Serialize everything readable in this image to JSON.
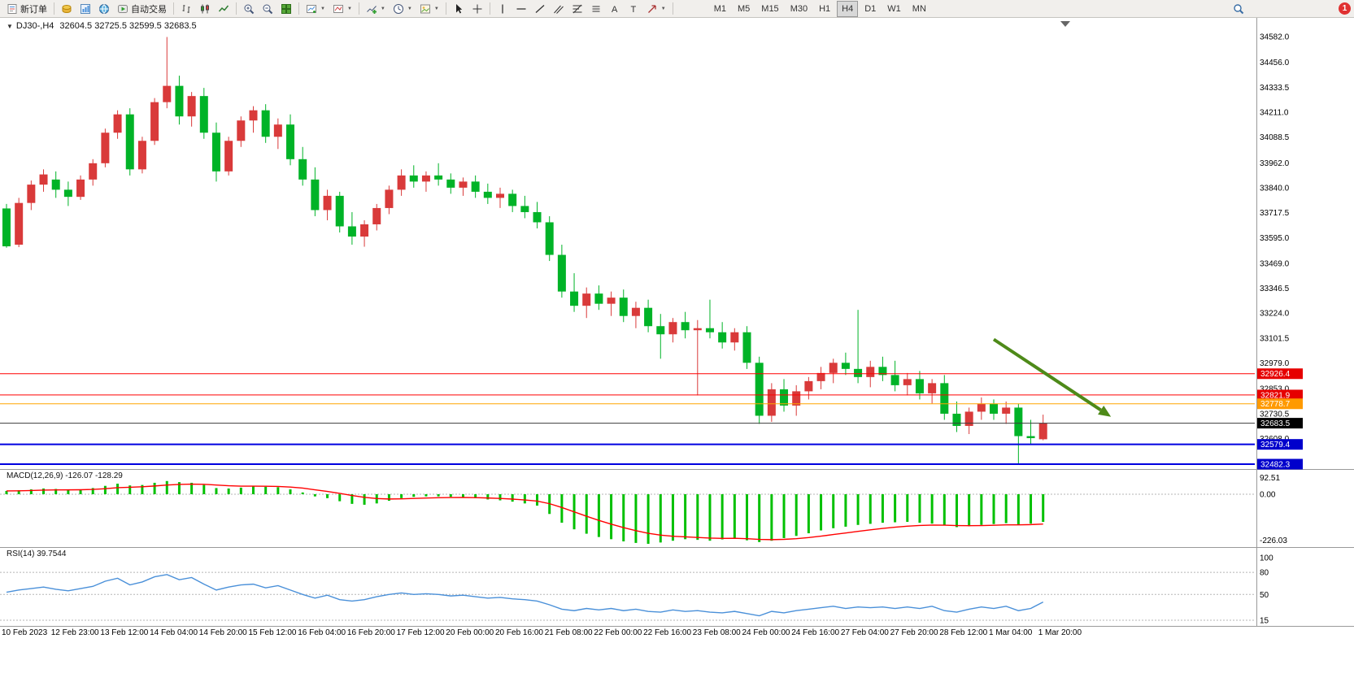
{
  "toolbar": {
    "new_order_label": "新订单",
    "autotrade_label": "自动交易",
    "timeframes": [
      "M1",
      "M5",
      "M15",
      "M30",
      "H1",
      "H4",
      "D1",
      "W1",
      "MN"
    ],
    "active_timeframe": "H4",
    "notification_count": "1",
    "icon_names": [
      "new-order-icon",
      "market-watch-icon",
      "data-window-icon",
      "community-icon",
      "autotrade-icon",
      "bar-chart-mode-icon",
      "candle-chart-mode-icon",
      "line-chart-mode-icon",
      "zoom-in-icon",
      "zoom-out-icon",
      "tile-windows-icon",
      "new-chart-icon",
      "chart-profiles-icon",
      "indicators-icon",
      "periods-icon",
      "templates-icon",
      "cursor-icon",
      "crosshair-icon",
      "vertical-line-icon",
      "horizontal-line-icon",
      "trendline-icon",
      "channel-icon",
      "fibonacci-icon",
      "shapes-icon",
      "text-icon",
      "label-icon",
      "arrows-icon",
      "search-icon"
    ]
  },
  "chart": {
    "expander": "▼",
    "symbol_header": "DJ30-,H4",
    "ohlc_text": "32604.5 32725.5 32599.5 32683.5",
    "colors": {
      "candle_up": "#d93a3a",
      "candle_down": "#00b327",
      "macd_histogram": "#00c000",
      "macd_signal": "#ff0000",
      "rsi_line": "#4a90d9",
      "separator": "#9a9a9a",
      "axis_text": "#000000",
      "grid_dash": "#b5b5b5"
    }
  },
  "chart_data": {
    "type": "candlestick",
    "symbol": "DJ30-",
    "timeframe": "H4",
    "open": "32604.5",
    "high": "32725.5",
    "low": "32599.5",
    "close": "32683.5",
    "price_axis": {
      "top": 34582.0,
      "bottom": 32482.3,
      "ticks": [
        "34582.0",
        "34456.0",
        "34333.5",
        "34211.0",
        "34088.5",
        "33962.0",
        "33840.0",
        "33717.5",
        "33595.0",
        "33469.0",
        "33346.5",
        "33224.0",
        "33101.5",
        "32979.0",
        "32853.0",
        "32730.5",
        "32608.0"
      ]
    },
    "x_labels": [
      "10 Feb 2023",
      "12 Feb 23:00",
      "13 Feb 12:00",
      "14 Feb 04:00",
      "14 Feb 20:00",
      "15 Feb 12:00",
      "16 Feb 04:00",
      "16 Feb 20:00",
      "17 Feb 12:00",
      "20 Feb 00:00",
      "20 Feb 16:00",
      "21 Feb 08:00",
      "22 Feb 00:00",
      "22 Feb 16:00",
      "23 Feb 08:00",
      "24 Feb 00:00",
      "24 Feb 16:00",
      "27 Feb 04:00",
      "27 Feb 20:00",
      "28 Feb 12:00",
      "1 Mar 04:00",
      "1 Mar 20:00"
    ],
    "candles": [
      [
        33738,
        33760,
        33545,
        33552
      ],
      [
        33560,
        33790,
        33548,
        33765
      ],
      [
        33765,
        33875,
        33730,
        33855
      ],
      [
        33855,
        33930,
        33820,
        33905
      ],
      [
        33880,
        33920,
        33790,
        33830
      ],
      [
        33830,
        33870,
        33750,
        33795
      ],
      [
        33795,
        33900,
        33780,
        33880
      ],
      [
        33880,
        33980,
        33850,
        33960
      ],
      [
        33960,
        34130,
        33940,
        34110
      ],
      [
        34110,
        34220,
        34080,
        34200
      ],
      [
        34200,
        34230,
        33900,
        33930
      ],
      [
        33930,
        34090,
        33910,
        34070
      ],
      [
        34070,
        34280,
        34050,
        34260
      ],
      [
        34260,
        34580,
        34230,
        34340
      ],
      [
        34340,
        34390,
        34150,
        34190
      ],
      [
        34190,
        34310,
        34140,
        34290
      ],
      [
        34290,
        34330,
        34080,
        34110
      ],
      [
        34110,
        34160,
        33870,
        33920
      ],
      [
        33920,
        34090,
        33900,
        34070
      ],
      [
        34070,
        34190,
        34040,
        34170
      ],
      [
        34170,
        34240,
        34110,
        34220
      ],
      [
        34220,
        34250,
        34060,
        34090
      ],
      [
        34090,
        34180,
        34030,
        34150
      ],
      [
        34150,
        34200,
        33950,
        33980
      ],
      [
        33980,
        34040,
        33850,
        33880
      ],
      [
        33880,
        33940,
        33700,
        33730
      ],
      [
        33730,
        33830,
        33680,
        33800
      ],
      [
        33800,
        33820,
        33620,
        33650
      ],
      [
        33650,
        33720,
        33560,
        33600
      ],
      [
        33600,
        33680,
        33550,
        33660
      ],
      [
        33660,
        33760,
        33630,
        33740
      ],
      [
        33740,
        33850,
        33710,
        33830
      ],
      [
        33830,
        33930,
        33800,
        33900
      ],
      [
        33900,
        33950,
        33840,
        33870
      ],
      [
        33870,
        33920,
        33820,
        33900
      ],
      [
        33900,
        33960,
        33850,
        33880
      ],
      [
        33880,
        33910,
        33810,
        33840
      ],
      [
        33840,
        33890,
        33800,
        33870
      ],
      [
        33870,
        33900,
        33790,
        33820
      ],
      [
        33820,
        33860,
        33760,
        33790
      ],
      [
        33790,
        33840,
        33740,
        33810
      ],
      [
        33810,
        33830,
        33720,
        33750
      ],
      [
        33750,
        33800,
        33690,
        33720
      ],
      [
        33720,
        33770,
        33640,
        33670
      ],
      [
        33670,
        33700,
        33480,
        33510
      ],
      [
        33510,
        33560,
        33300,
        33330
      ],
      [
        33330,
        33420,
        33230,
        33260
      ],
      [
        33260,
        33350,
        33200,
        33320
      ],
      [
        33320,
        33360,
        33240,
        33270
      ],
      [
        33270,
        33330,
        33210,
        33300
      ],
      [
        33300,
        33340,
        33180,
        33210
      ],
      [
        33210,
        33280,
        33150,
        33250
      ],
      [
        33250,
        33290,
        33130,
        33160
      ],
      [
        33160,
        33220,
        33000,
        33120
      ],
      [
        33120,
        33200,
        33080,
        33180
      ],
      [
        33180,
        33230,
        33100,
        33140
      ],
      [
        33140,
        33190,
        32820,
        33150
      ],
      [
        33150,
        33290,
        33100,
        33130
      ],
      [
        33130,
        33180,
        33050,
        33080
      ],
      [
        33080,
        33150,
        33040,
        33130
      ],
      [
        33130,
        33160,
        32950,
        32980
      ],
      [
        32980,
        33010,
        32680,
        32720
      ],
      [
        32720,
        32880,
        32690,
        32850
      ],
      [
        32850,
        32900,
        32740,
        32770
      ],
      [
        32770,
        32870,
        32720,
        32840
      ],
      [
        32840,
        32910,
        32800,
        32890
      ],
      [
        32890,
        32960,
        32850,
        32930
      ],
      [
        32930,
        33000,
        32880,
        32980
      ],
      [
        32980,
        33030,
        32920,
        32950
      ],
      [
        32950,
        33240,
        32880,
        32910
      ],
      [
        32910,
        32990,
        32860,
        32960
      ],
      [
        32960,
        33010,
        32890,
        32920
      ],
      [
        32920,
        32990,
        32840,
        32870
      ],
      [
        32870,
        32930,
        32820,
        32900
      ],
      [
        32900,
        32940,
        32800,
        32830
      ],
      [
        32830,
        32900,
        32780,
        32880
      ],
      [
        32880,
        32920,
        32700,
        32730
      ],
      [
        32730,
        32790,
        32640,
        32670
      ],
      [
        32670,
        32760,
        32630,
        32740
      ],
      [
        32740,
        32810,
        32700,
        32780
      ],
      [
        32780,
        32800,
        32700,
        32730
      ],
      [
        32730,
        32790,
        32680,
        32760
      ],
      [
        32760,
        32780,
        32480,
        32620
      ],
      [
        32620,
        32700,
        32580,
        32610
      ],
      [
        32604.5,
        32725.5,
        32599.5,
        32683.5
      ]
    ],
    "hlines": [
      {
        "price": 32926.4,
        "label": "32926.4",
        "type": "resistance",
        "color": "#ff0000",
        "badge": "#e60000",
        "width": 1
      },
      {
        "price": 32821.9,
        "label": "32821.9",
        "type": "resistance",
        "color": "#ff0000",
        "badge": "#e60000",
        "width": 1
      },
      {
        "price": 32778.7,
        "label": "32778.7",
        "type": "level",
        "color": "#ffa500",
        "badge": "#ff9a00",
        "width": 1
      },
      {
        "price": 32683.5,
        "label": "32683.5",
        "type": "current-price",
        "color": "#3c3c3c",
        "badge": "#000000",
        "width": 1
      },
      {
        "price": 32579.4,
        "label": "32579.4",
        "type": "support",
        "color": "#0000e0",
        "badge": "#0000cc",
        "width": 2
      },
      {
        "price": 32482.3,
        "label": "32482.3",
        "type": "support",
        "color": "#0000e0",
        "badge": "#0000cc",
        "width": 2
      }
    ],
    "arrow": {
      "from_index": 80,
      "from_price": 33095,
      "to_index": 89.5,
      "to_price": 32715,
      "color": "#4e8a19",
      "width": 4
    },
    "macd": {
      "label": "MACD(12,26,9)",
      "value_main": "-126.07",
      "value_signal": "-128.29",
      "scale_max": 92.51,
      "scale_min": -226.03,
      "scale_labels": [
        "92.51",
        "0.00",
        "-226.03"
      ],
      "histogram": [
        15,
        18,
        22,
        26,
        24,
        20,
        22,
        28,
        38,
        48,
        40,
        42,
        52,
        60,
        55,
        52,
        42,
        28,
        26,
        30,
        36,
        34,
        32,
        22,
        8,
        -10,
        -18,
        -32,
        -44,
        -48,
        -42,
        -30,
        -18,
        -12,
        -10,
        -10,
        -12,
        -14,
        -18,
        -24,
        -28,
        -34,
        -42,
        -52,
        -90,
        -130,
        -160,
        -180,
        -195,
        -205,
        -215,
        -222,
        -226,
        -220,
        -212,
        -205,
        -208,
        -212,
        -206,
        -200,
        -210,
        -218,
        -212,
        -200,
        -190,
        -178,
        -165,
        -155,
        -148,
        -140,
        -135,
        -130,
        -128,
        -126,
        -130,
        -134,
        -142,
        -150,
        -146,
        -140,
        -136,
        -132,
        -140,
        -134,
        -126.07
      ]
    },
    "rsi": {
      "label": "RSI(14)",
      "value": "39.7544",
      "scale_labels": [
        "100",
        "80",
        "50",
        "15"
      ],
      "levels": [
        80,
        50,
        15
      ],
      "values": [
        53,
        56,
        58,
        60,
        57,
        55,
        58,
        61,
        68,
        72,
        63,
        67,
        74,
        77,
        70,
        73,
        64,
        56,
        60,
        63,
        64,
        59,
        62,
        56,
        50,
        45,
        49,
        43,
        41,
        43,
        47,
        50,
        52,
        50,
        51,
        50,
        48,
        49,
        47,
        45,
        46,
        44,
        43,
        41,
        36,
        30,
        28,
        31,
        29,
        31,
        28,
        30,
        27,
        26,
        29,
        27,
        28,
        26,
        25,
        27,
        24,
        21,
        27,
        25,
        28,
        30,
        32,
        34,
        31,
        33,
        32,
        33,
        31,
        33,
        31,
        34,
        28,
        26,
        30,
        33,
        31,
        34,
        28,
        31,
        39.75
      ]
    }
  }
}
